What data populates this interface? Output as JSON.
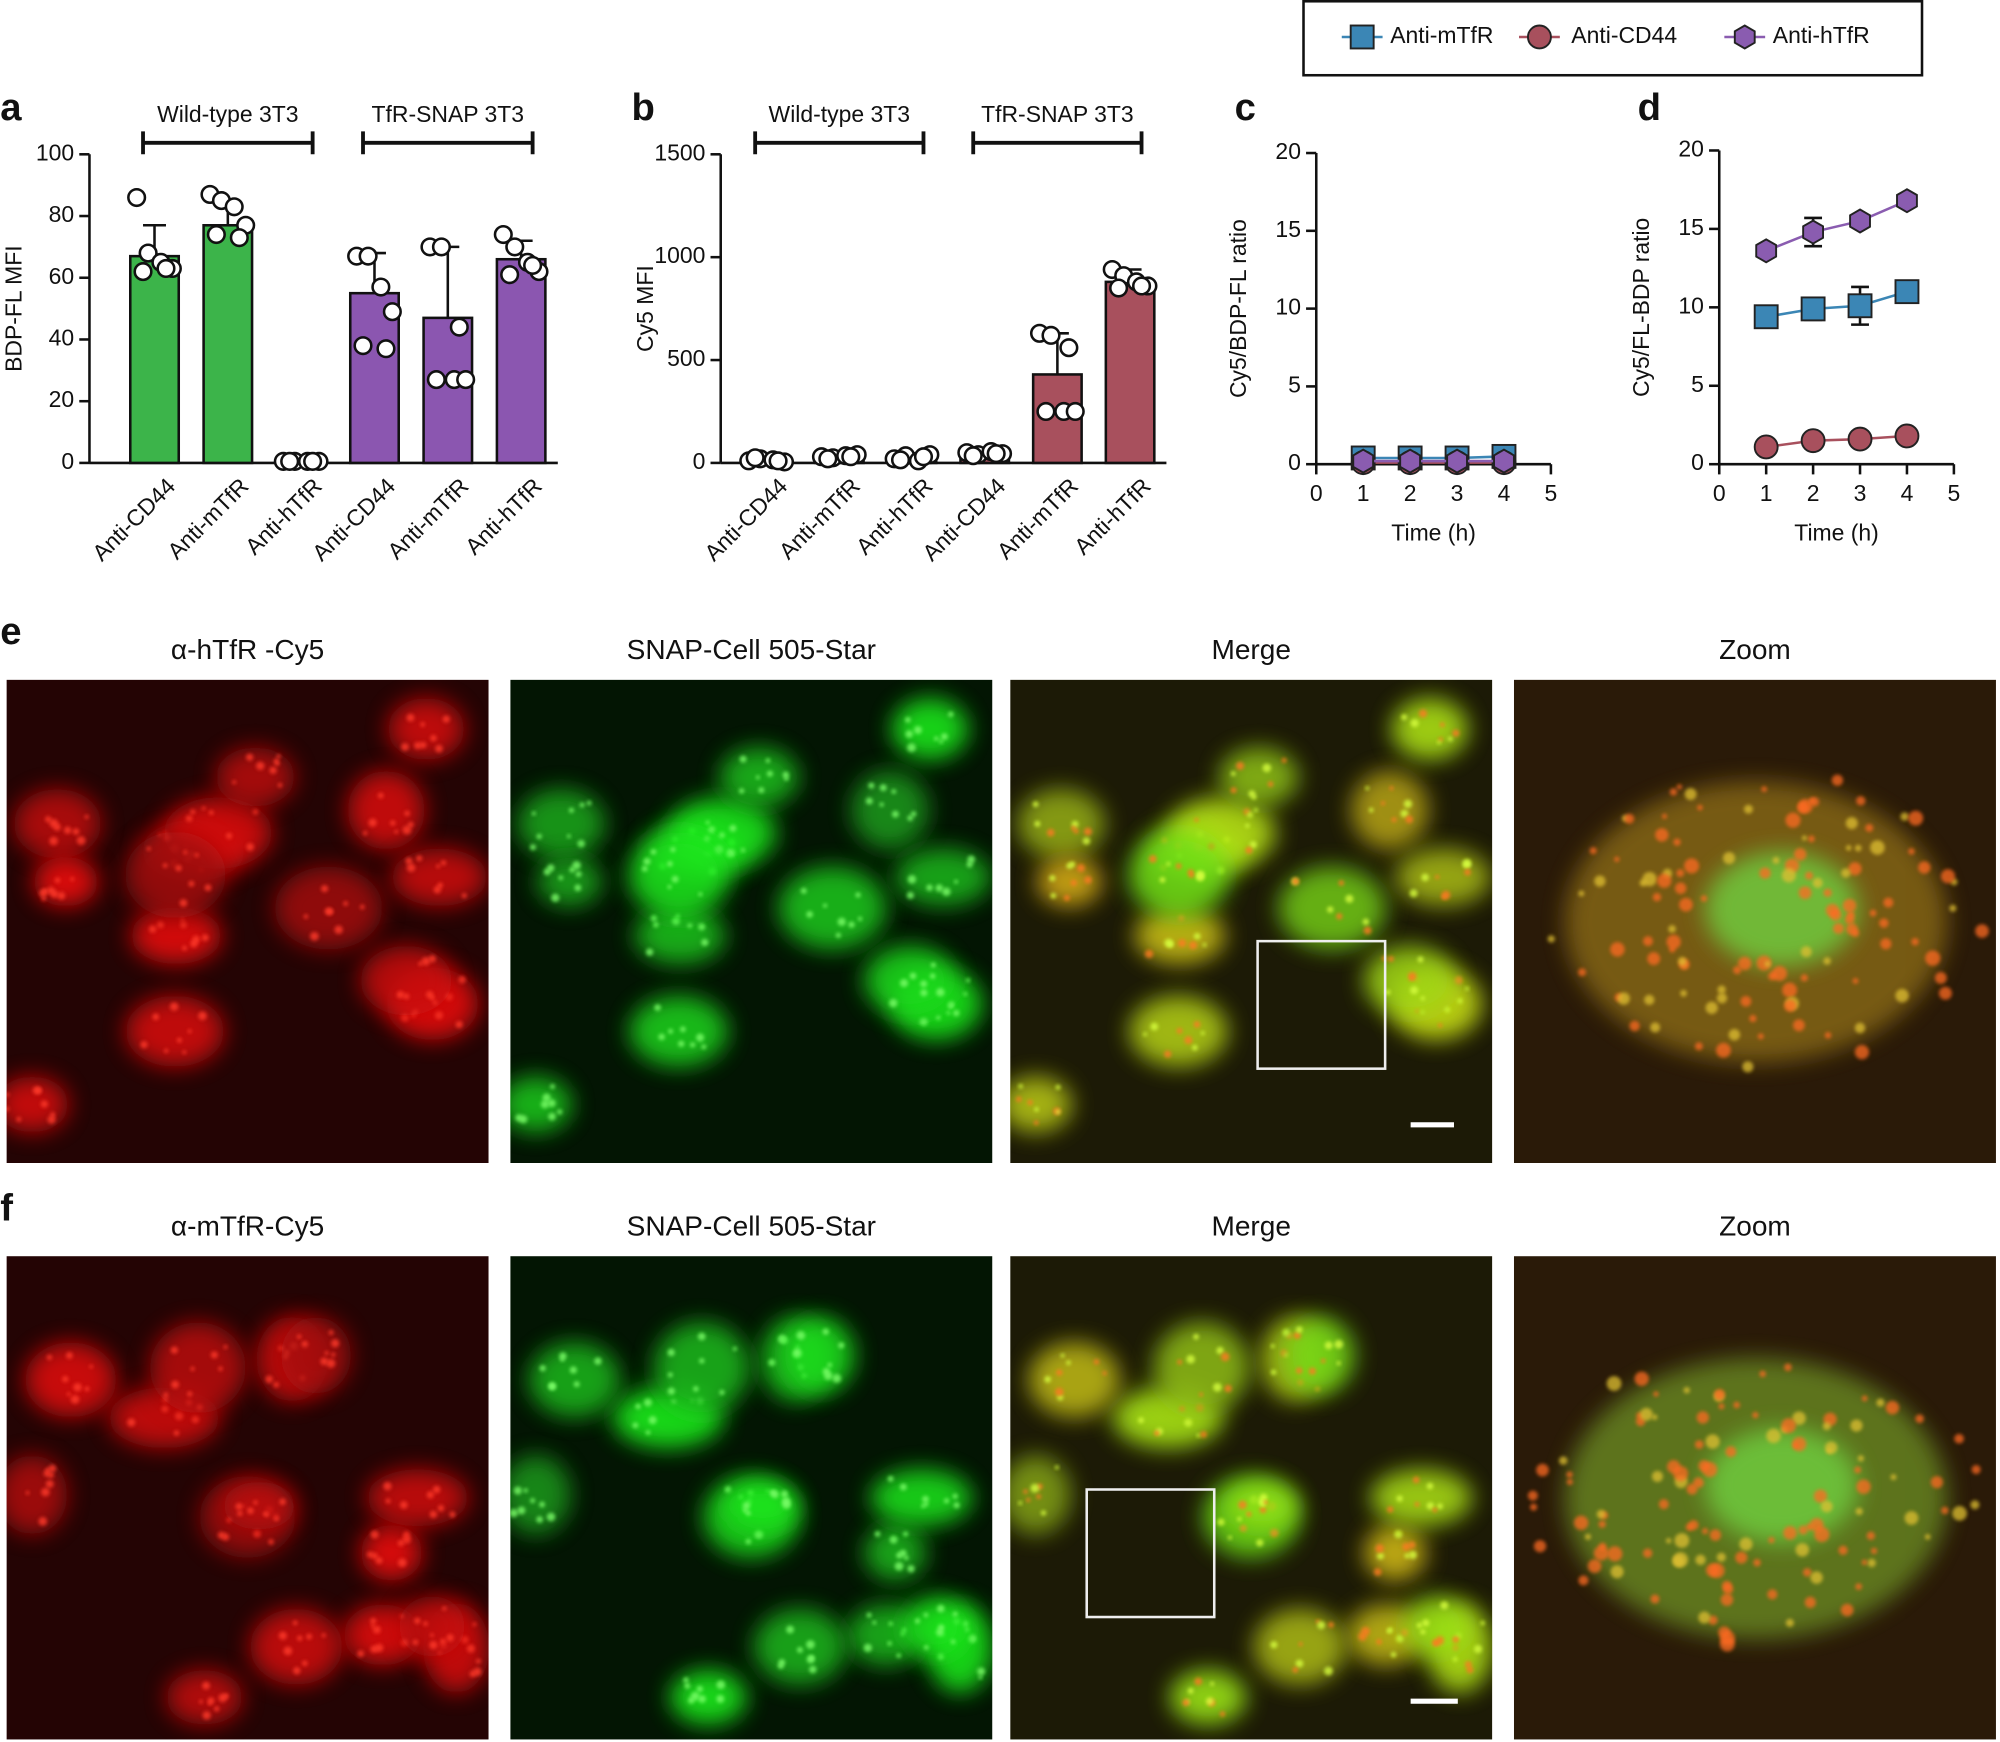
{
  "chart_data": [
    {
      "type": "bar",
      "panel_label": "a",
      "ylabel": "BDP-FL MFI",
      "groups": [
        "Wild-type 3T3",
        "TfR-SNAP 3T3"
      ],
      "categories": [
        "Anti-CD44",
        "Anti-mTfR",
        "Anti-hTfR",
        "Anti-CD44",
        "Anti-mTfR",
        "Anti-hTfR"
      ],
      "values": [
        67,
        77,
        0.5,
        55,
        47,
        66
      ],
      "errors": [
        10,
        7,
        0.5,
        13,
        23,
        6
      ],
      "colors": [
        "#3cb44a",
        "#3cb44a",
        "#3cb44a",
        "#8b56b0",
        "#8b56b0",
        "#8b56b0"
      ],
      "points": [
        [
          86,
          68,
          65,
          63,
          62,
          63
        ],
        [
          87,
          85,
          83,
          77,
          74,
          73
        ],
        [
          0.5,
          0.5,
          0.5,
          0.5,
          0.5,
          0.5
        ],
        [
          67,
          67,
          57,
          49,
          38,
          37
        ],
        [
          70,
          70,
          27,
          27,
          27,
          44
        ],
        [
          74,
          70,
          65,
          62,
          61,
          64
        ]
      ],
      "ylim": [
        0,
        100
      ],
      "yticks": [
        0,
        20,
        40,
        60,
        80,
        100
      ]
    },
    {
      "type": "bar",
      "panel_label": "b",
      "ylabel": "Cy5 MFI",
      "groups": [
        "Wild-type 3T3",
        "TfR-SNAP 3T3"
      ],
      "categories": [
        "Anti-CD44",
        "Anti-mTfR",
        "Anti-hTfR",
        "Anti-CD44",
        "Anti-mTfR",
        "Anti-hTfR"
      ],
      "values": [
        15,
        30,
        25,
        45,
        430,
        880
      ],
      "errors": [
        5,
        5,
        10,
        10,
        200,
        60
      ],
      "colors": [
        "#a8505d",
        "#a8505d",
        "#a8505d",
        "#a8505d",
        "#a8505d",
        "#a8505d"
      ],
      "points": [
        [
          10,
          20,
          15,
          5,
          25,
          10
        ],
        [
          30,
          25,
          35,
          40,
          20,
          30
        ],
        [
          20,
          35,
          10,
          40,
          15,
          30
        ],
        [
          50,
          40,
          55,
          45,
          35,
          45
        ],
        [
          630,
          620,
          250,
          250,
          250,
          560
        ],
        [
          940,
          910,
          880,
          860,
          850,
          860
        ]
      ],
      "ylim": [
        0,
        1500
      ],
      "yticks": [
        0,
        500,
        1000,
        1500
      ]
    },
    {
      "type": "line",
      "panel_label": "c",
      "xlabel": "Time (h)",
      "ylabel": "Cy5/BDP-FL ratio",
      "x": [
        1,
        2,
        3,
        4
      ],
      "series": [
        {
          "name": "Anti-mTfR",
          "color": "#3b86b5",
          "marker": "square",
          "values": [
            0.4,
            0.4,
            0.4,
            0.5
          ]
        },
        {
          "name": "Anti-CD44",
          "color": "#a8505d",
          "marker": "circle",
          "values": [
            0.1,
            0.1,
            0.1,
            0.1
          ]
        },
        {
          "name": "Anti-hTfR",
          "color": "#8a5cb0",
          "marker": "hexagon",
          "values": [
            0.2,
            0.2,
            0.2,
            0.2
          ]
        }
      ],
      "xlim": [
        0,
        5
      ],
      "xticks": [
        0,
        1,
        2,
        3,
        4,
        5
      ],
      "ylim": [
        0,
        20
      ],
      "yticks": [
        0,
        5,
        10,
        15,
        20
      ]
    },
    {
      "type": "line",
      "panel_label": "d",
      "xlabel": "Time (h)",
      "ylabel": "Cy5/FL-BDP ratio",
      "x": [
        1,
        2,
        3,
        4
      ],
      "series": [
        {
          "color": "#3b86b5",
          "marker": "square",
          "values": [
            9.4,
            9.9,
            10.1,
            11
          ],
          "errors": [
            0.4,
            0.7,
            1.2,
            0.4
          ]
        },
        {
          "color": "#a8505d",
          "marker": "circle",
          "values": [
            1.1,
            1.5,
            1.6,
            1.8
          ],
          "errors": [
            0.2,
            0.2,
            0.2,
            0.2
          ]
        },
        {
          "color": "#8a5cb0",
          "marker": "hexagon",
          "values": [
            13.6,
            14.8,
            15.5,
            16.8
          ],
          "errors": [
            0.3,
            0.9,
            0.3,
            0.3
          ]
        }
      ],
      "xlim": [
        0,
        5
      ],
      "xticks": [
        0,
        1,
        2,
        3,
        4,
        5
      ],
      "ylim": [
        0,
        20
      ],
      "yticks": [
        0,
        5,
        10,
        15,
        20
      ]
    }
  ],
  "panels": [
    {
      "label": "e",
      "titles": [
        "α-hTfR -Cy5",
        "SNAP-Cell 505-Star",
        "Merge",
        "Zoom"
      ]
    },
    {
      "label": "f",
      "titles": [
        "α-mTfR-Cy5",
        "SNAP-Cell 505-Star",
        "Merge",
        "Zoom"
      ]
    }
  ]
}
